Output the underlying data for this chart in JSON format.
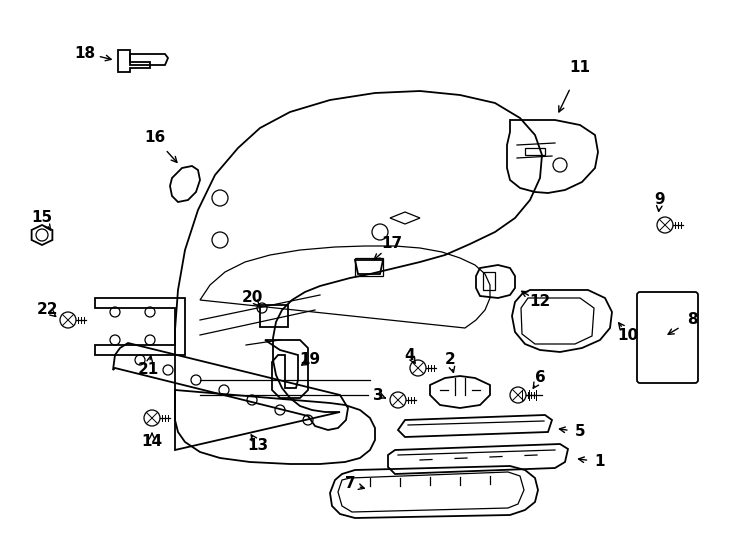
{
  "background_color": "#ffffff",
  "line_color": "#000000",
  "text_color": "#000000",
  "label_fontsize": 11,
  "fig_width": 7.34,
  "fig_height": 5.4,
  "dpi": 100
}
